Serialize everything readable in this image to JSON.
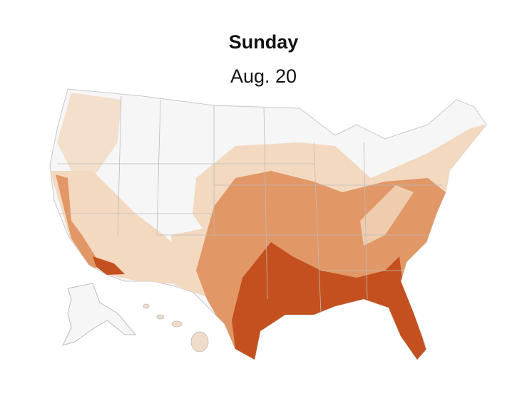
{
  "title": "Sunday",
  "subtitle": "Aug. 20"
}
